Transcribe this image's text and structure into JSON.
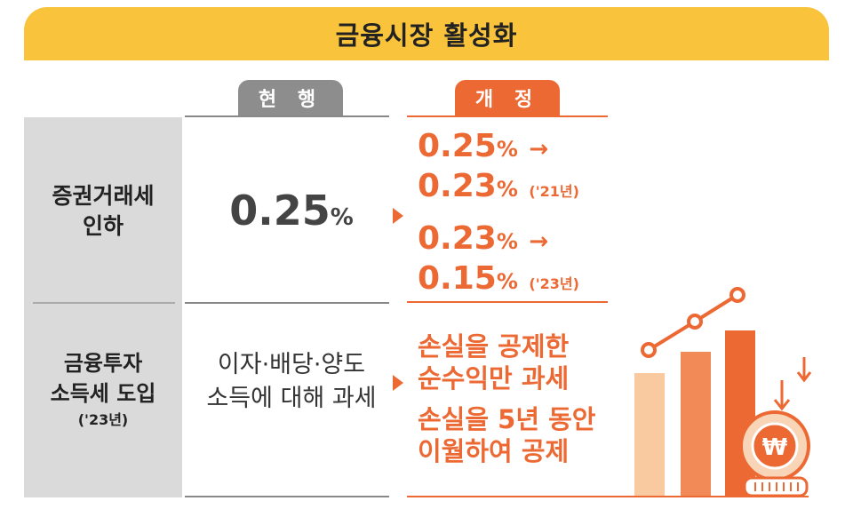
{
  "title": "금융시장 활성화",
  "headers": {
    "current": "현 행",
    "revised": "개 정"
  },
  "rows": [
    {
      "label_line1": "증권거래세",
      "label_line2": "인하",
      "current_value": "0.25",
      "current_unit": "%",
      "revised": [
        {
          "from": "0.25",
          "to": "0.23",
          "unit": "%",
          "arrow": "→",
          "year": "('21년)"
        },
        {
          "from": "0.23",
          "to": "0.15",
          "unit": "%",
          "arrow": "→",
          "year": "('23년)"
        }
      ]
    },
    {
      "label_line1": "금융투자",
      "label_line2": "소득세 도입",
      "label_line3": "('23년)",
      "current_line1": "이자·배당·양도",
      "current_line2": "소득에 대해 과세",
      "revised_lines": [
        "손실을 공제한",
        "순수익만 과세",
        "손실을 5년 동안",
        "이월하여 공제"
      ]
    }
  ],
  "illustration": {
    "coin_symbol": "₩"
  },
  "colors": {
    "title_bg": "#f9c33c",
    "current_tab": "#8d8d8d",
    "revised_accent": "#ec6934",
    "label_bg": "#dadada",
    "bar_light": "#f9c9a0",
    "bar_mid": "#f28a57",
    "bar_dark": "#ec6934"
  }
}
